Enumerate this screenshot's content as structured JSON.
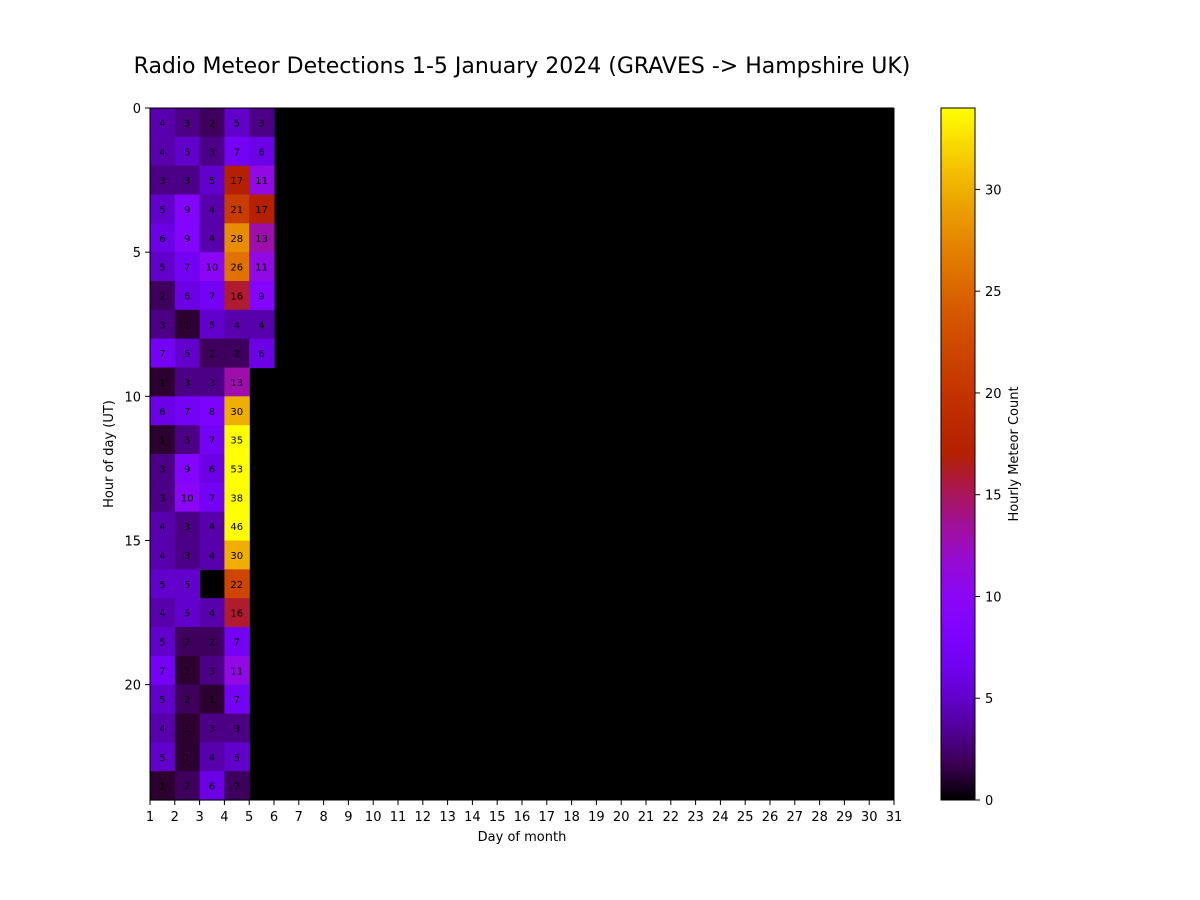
{
  "chart_data": {
    "type": "heatmap",
    "title": "Radio Meteor Detections 1-5 January 2024 (GRAVES -> Hampshire UK)",
    "xlabel": "Day of month",
    "ylabel": "Hour of day (UT)",
    "colorbar_label": "Hourly Meteor Count",
    "colormap": "gnuplot",
    "x_ticks": [
      1,
      2,
      3,
      4,
      5,
      6,
      7,
      8,
      9,
      10,
      11,
      12,
      13,
      14,
      15,
      16,
      17,
      18,
      19,
      20,
      21,
      22,
      23,
      24,
      25,
      26,
      27,
      28,
      29,
      30,
      31
    ],
    "y_ticks": [
      0,
      5,
      10,
      15,
      20
    ],
    "colorbar_ticks": [
      0,
      5,
      10,
      15,
      20,
      25,
      30
    ],
    "vmin": 0,
    "vmax": 34,
    "day_range": [
      1,
      31
    ],
    "hour_range": [
      0,
      24
    ],
    "days": [
      1,
      2,
      3,
      4,
      5
    ],
    "hours": [
      0,
      1,
      2,
      3,
      4,
      5,
      6,
      7,
      8,
      9,
      10,
      11,
      12,
      13,
      14,
      15,
      16,
      17,
      18,
      19,
      20,
      21,
      22,
      23
    ],
    "values": [
      [
        4,
        3,
        2,
        5,
        3
      ],
      [
        4,
        5,
        3,
        7,
        6
      ],
      [
        3,
        3,
        5,
        17,
        11
      ],
      [
        5,
        9,
        4,
        21,
        17
      ],
      [
        6,
        9,
        4,
        28,
        13
      ],
      [
        5,
        7,
        10,
        26,
        11
      ],
      [
        2,
        6,
        7,
        16,
        9
      ],
      [
        3,
        1,
        5,
        4,
        4
      ],
      [
        7,
        5,
        2,
        2,
        6
      ],
      [
        1,
        3,
        3,
        13,
        null
      ],
      [
        6,
        7,
        8,
        30,
        null
      ],
      [
        1,
        3,
        7,
        35,
        null
      ],
      [
        3,
        9,
        6,
        53,
        null
      ],
      [
        3,
        10,
        7,
        38,
        null
      ],
      [
        4,
        3,
        4,
        46,
        null
      ],
      [
        4,
        3,
        4,
        30,
        null
      ],
      [
        5,
        5,
        null,
        22,
        null
      ],
      [
        4,
        5,
        4,
        16,
        null
      ],
      [
        5,
        2,
        2,
        7,
        null
      ],
      [
        7,
        1,
        3,
        11,
        null
      ],
      [
        5,
        2,
        1,
        7,
        null
      ],
      [
        4,
        1,
        3,
        3,
        null
      ],
      [
        5,
        1,
        4,
        5,
        null
      ],
      [
        1,
        2,
        6,
        2,
        null
      ]
    ]
  }
}
